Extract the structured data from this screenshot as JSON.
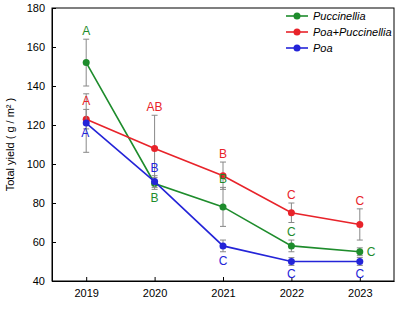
{
  "chart_data": {
    "type": "line",
    "y_label": "Total yield ( g / m² )",
    "categories": [
      "2019",
      "2020",
      "2021",
      "2022",
      "2023"
    ],
    "series": [
      {
        "name": "Puccinellia",
        "color": "#1e8c2c",
        "marker": "circle",
        "values": [
          152,
          90,
          78,
          58,
          55
        ],
        "errors": [
          12,
          3,
          10,
          3,
          2
        ],
        "letters": [
          "A",
          "B",
          "B",
          "C",
          "C"
        ]
      },
      {
        "name": "Poa+Puccinellia",
        "color": "#e8232a",
        "marker": "circle",
        "values": [
          123,
          108,
          94,
          75,
          69
        ],
        "errors": [
          5,
          17,
          7,
          5,
          8
        ],
        "letters": [
          "A",
          "AB",
          "B",
          "C",
          "C"
        ]
      },
      {
        "name": "Poa",
        "color": "#2424d8",
        "marker": "circle",
        "values": [
          121,
          91,
          58,
          50,
          50
        ],
        "errors": [
          15,
          3,
          3,
          2,
          2
        ],
        "letters": [
          "A",
          "B",
          "C",
          "C",
          "C"
        ]
      }
    ],
    "ylim": [
      40,
      180
    ],
    "yticks": [
      40,
      60,
      80,
      100,
      120,
      140,
      160,
      180
    ],
    "legend": "upper right"
  }
}
